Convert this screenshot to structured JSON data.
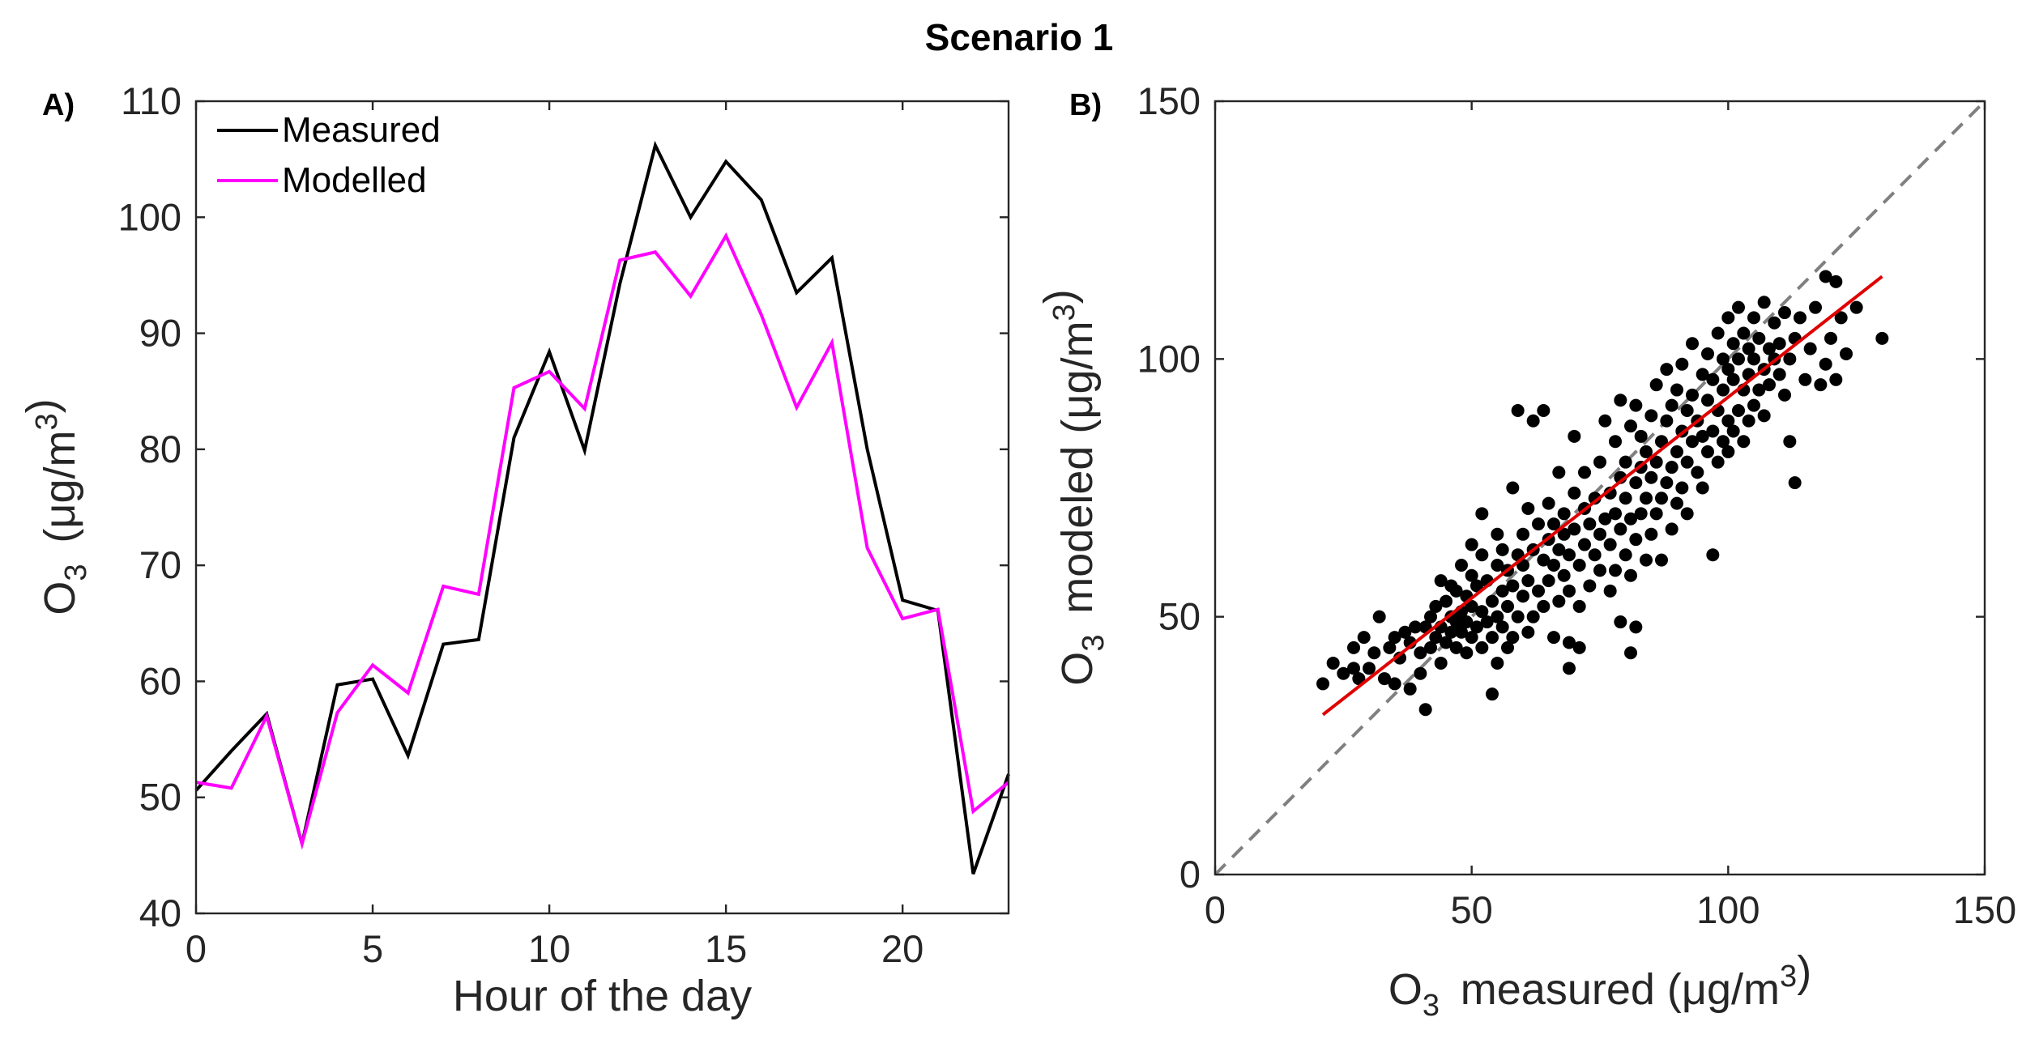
{
  "figure": {
    "title": "Scenario 1"
  },
  "colors": {
    "measured": "#000000",
    "modelled": "#ff00ff",
    "scatter_points": "#000000",
    "fit_line": "#e00000",
    "one_to_one": "#808080",
    "axis": "#262626"
  },
  "chart_data": [
    {
      "type": "line",
      "panel": "A)",
      "xlabel": "Hour of the day",
      "ylabel": "O3 (μg/m3)",
      "xlim": [
        0,
        23
      ],
      "ylim": [
        40,
        110
      ],
      "xticks": [
        0,
        5,
        10,
        15,
        20
      ],
      "yticks": [
        40,
        50,
        60,
        70,
        80,
        90,
        100,
        110
      ],
      "legend_position": "top-left",
      "x": [
        0,
        1,
        2,
        3,
        4,
        5,
        6,
        7,
        8,
        9,
        10,
        11,
        12,
        13,
        14,
        15,
        16,
        17,
        18,
        19,
        20,
        21,
        22,
        23
      ],
      "series": [
        {
          "name": "Measured",
          "color": "#000000",
          "values": [
            50.6,
            54.0,
            57.2,
            46.0,
            59.7,
            60.2,
            53.6,
            63.2,
            63.6,
            81.0,
            88.4,
            79.9,
            94.3,
            106.2,
            100.0,
            104.8,
            101.5,
            93.5,
            96.5,
            80.0,
            67.0,
            66.1,
            43.4,
            52.0
          ]
        },
        {
          "name": "Modelled",
          "color": "#ff00ff",
          "values": [
            51.3,
            50.8,
            57.0,
            46.0,
            57.3,
            61.4,
            59.0,
            68.2,
            67.5,
            85.3,
            86.7,
            83.5,
            96.3,
            97.0,
            93.2,
            98.4,
            91.6,
            83.6,
            89.2,
            71.5,
            65.4,
            66.2,
            48.8,
            51.3
          ]
        }
      ]
    },
    {
      "type": "scatter",
      "panel": "B)",
      "xlabel": "O3 measured (μg/m3)",
      "ylabel": "O3 modeled (μg/m3)",
      "xlim": [
        0,
        150
      ],
      "ylim": [
        0,
        150
      ],
      "xticks": [
        0,
        50,
        100,
        150
      ],
      "yticks": [
        0,
        50,
        100,
        150
      ],
      "one_to_one_line": [
        [
          0,
          0
        ],
        [
          150,
          150
        ]
      ],
      "fit_line": [
        [
          21,
          31
        ],
        [
          130,
          116
        ]
      ],
      "points": [
        [
          21,
          37
        ],
        [
          23,
          41
        ],
        [
          25,
          39
        ],
        [
          27,
          40
        ],
        [
          27,
          44
        ],
        [
          28,
          38
        ],
        [
          29,
          46
        ],
        [
          30,
          40
        ],
        [
          31,
          43
        ],
        [
          32,
          50
        ],
        [
          33,
          38
        ],
        [
          34,
          44
        ],
        [
          35,
          37
        ],
        [
          35,
          46
        ],
        [
          36,
          42
        ],
        [
          37,
          47
        ],
        [
          38,
          36
        ],
        [
          38,
          45
        ],
        [
          39,
          48
        ],
        [
          40,
          43
        ],
        [
          40,
          39
        ],
        [
          41,
          48
        ],
        [
          41,
          32
        ],
        [
          42,
          44
        ],
        [
          42,
          50
        ],
        [
          43,
          46
        ],
        [
          43,
          52
        ],
        [
          44,
          41
        ],
        [
          44,
          48
        ],
        [
          44,
          57
        ],
        [
          45,
          45
        ],
        [
          45,
          53
        ],
        [
          46,
          47
        ],
        [
          46,
          50
        ],
        [
          46,
          56
        ],
        [
          47,
          44
        ],
        [
          47,
          49
        ],
        [
          47,
          55
        ],
        [
          48,
          47
        ],
        [
          48,
          51
        ],
        [
          48,
          60
        ],
        [
          49,
          43
        ],
        [
          49,
          49
        ],
        [
          49,
          54
        ],
        [
          50,
          46
        ],
        [
          50,
          52
        ],
        [
          50,
          58
        ],
        [
          50,
          64
        ],
        [
          51,
          48
        ],
        [
          51,
          56
        ],
        [
          52,
          44
        ],
        [
          52,
          51
        ],
        [
          52,
          62
        ],
        [
          52,
          70
        ],
        [
          53,
          49
        ],
        [
          53,
          57
        ],
        [
          54,
          35
        ],
        [
          54,
          46
        ],
        [
          54,
          53
        ],
        [
          55,
          41
        ],
        [
          55,
          50
        ],
        [
          55,
          60
        ],
        [
          55,
          66
        ],
        [
          56,
          48
        ],
        [
          56,
          55
        ],
        [
          56,
          63
        ],
        [
          57,
          44
        ],
        [
          57,
          52
        ],
        [
          57,
          59
        ],
        [
          58,
          46
        ],
        [
          58,
          56
        ],
        [
          58,
          75
        ],
        [
          59,
          50
        ],
        [
          59,
          62
        ],
        [
          59,
          90
        ],
        [
          60,
          54
        ],
        [
          60,
          60
        ],
        [
          60,
          66
        ],
        [
          61,
          47
        ],
        [
          61,
          57
        ],
        [
          61,
          71
        ],
        [
          62,
          50
        ],
        [
          62,
          63
        ],
        [
          62,
          88
        ],
        [
          63,
          55
        ],
        [
          63,
          68
        ],
        [
          64,
          52
        ],
        [
          64,
          61
        ],
        [
          64,
          90
        ],
        [
          65,
          57
        ],
        [
          65,
          65
        ],
        [
          65,
          72
        ],
        [
          66,
          46
        ],
        [
          66,
          60
        ],
        [
          66,
          68
        ],
        [
          67,
          53
        ],
        [
          67,
          63
        ],
        [
          67,
          78
        ],
        [
          68,
          58
        ],
        [
          68,
          66
        ],
        [
          68,
          70
        ],
        [
          69,
          40
        ],
        [
          69,
          45
        ],
        [
          69,
          55
        ],
        [
          69,
          62
        ],
        [
          70,
          67
        ],
        [
          70,
          74
        ],
        [
          70,
          85
        ],
        [
          71,
          52
        ],
        [
          71,
          60
        ],
        [
          71,
          44
        ],
        [
          72,
          64
        ],
        [
          72,
          71
        ],
        [
          72,
          78
        ],
        [
          73,
          56
        ],
        [
          73,
          68
        ],
        [
          74,
          62
        ],
        [
          74,
          73
        ],
        [
          75,
          59
        ],
        [
          75,
          66
        ],
        [
          75,
          80
        ],
        [
          76,
          69
        ],
        [
          76,
          88
        ],
        [
          77,
          55
        ],
        [
          77,
          64
        ],
        [
          77,
          74
        ],
        [
          78,
          59
        ],
        [
          78,
          70
        ],
        [
          78,
          84
        ],
        [
          79,
          49
        ],
        [
          79,
          67
        ],
        [
          79,
          77
        ],
        [
          79,
          92
        ],
        [
          80,
          62
        ],
        [
          80,
          73
        ],
        [
          80,
          80
        ],
        [
          81,
          43
        ],
        [
          81,
          58
        ],
        [
          81,
          69
        ],
        [
          81,
          87
        ],
        [
          82,
          48
        ],
        [
          82,
          65
        ],
        [
          82,
          76
        ],
        [
          82,
          91
        ],
        [
          83,
          70
        ],
        [
          83,
          79
        ],
        [
          83,
          85
        ],
        [
          84,
          61
        ],
        [
          84,
          73
        ],
        [
          84,
          82
        ],
        [
          85,
          66
        ],
        [
          85,
          77
        ],
        [
          85,
          89
        ],
        [
          86,
          70
        ],
        [
          86,
          80
        ],
        [
          86,
          95
        ],
        [
          87,
          61
        ],
        [
          87,
          73
        ],
        [
          87,
          84
        ],
        [
          88,
          76
        ],
        [
          88,
          88
        ],
        [
          88,
          98
        ],
        [
          89,
          67
        ],
        [
          89,
          79
        ],
        [
          89,
          91
        ],
        [
          90,
          72
        ],
        [
          90,
          82
        ],
        [
          90,
          94
        ],
        [
          91,
          75
        ],
        [
          91,
          86
        ],
        [
          91,
          99
        ],
        [
          92,
          70
        ],
        [
          92,
          80
        ],
        [
          92,
          90
        ],
        [
          93,
          84
        ],
        [
          93,
          93
        ],
        [
          93,
          103
        ],
        [
          94,
          78
        ],
        [
          94,
          88
        ],
        [
          95,
          75
        ],
        [
          95,
          85
        ],
        [
          95,
          97
        ],
        [
          96,
          82
        ],
        [
          96,
          92
        ],
        [
          96,
          101
        ],
        [
          97,
          62
        ],
        [
          97,
          86
        ],
        [
          97,
          96
        ],
        [
          98,
          80
        ],
        [
          98,
          90
        ],
        [
          98,
          105
        ],
        [
          99,
          84
        ],
        [
          99,
          94
        ],
        [
          99,
          100
        ],
        [
          100,
          82
        ],
        [
          100,
          88
        ],
        [
          100,
          98
        ],
        [
          100,
          108
        ],
        [
          101,
          86
        ],
        [
          101,
          96
        ],
        [
          101,
          103
        ],
        [
          102,
          90
        ],
        [
          102,
          100
        ],
        [
          102,
          110
        ],
        [
          103,
          84
        ],
        [
          103,
          94
        ],
        [
          103,
          105
        ],
        [
          104,
          88
        ],
        [
          104,
          97
        ],
        [
          104,
          102
        ],
        [
          105,
          91
        ],
        [
          105,
          100
        ],
        [
          105,
          108
        ],
        [
          106,
          94
        ],
        [
          106,
          104
        ],
        [
          107,
          89
        ],
        [
          107,
          98
        ],
        [
          107,
          111
        ],
        [
          108,
          95
        ],
        [
          108,
          102
        ],
        [
          109,
          100
        ],
        [
          109,
          107
        ],
        [
          110,
          97
        ],
        [
          110,
          103
        ],
        [
          111,
          93
        ],
        [
          111,
          109
        ],
        [
          112,
          100
        ],
        [
          112,
          84
        ],
        [
          113,
          76
        ],
        [
          113,
          104
        ],
        [
          114,
          108
        ],
        [
          115,
          96
        ],
        [
          116,
          102
        ],
        [
          117,
          110
        ],
        [
          118,
          95
        ],
        [
          119,
          99
        ],
        [
          119,
          116
        ],
        [
          120,
          104
        ],
        [
          121,
          96
        ],
        [
          121,
          115
        ],
        [
          122,
          108
        ],
        [
          123,
          101
        ],
        [
          125,
          110
        ],
        [
          130,
          104
        ]
      ]
    }
  ]
}
